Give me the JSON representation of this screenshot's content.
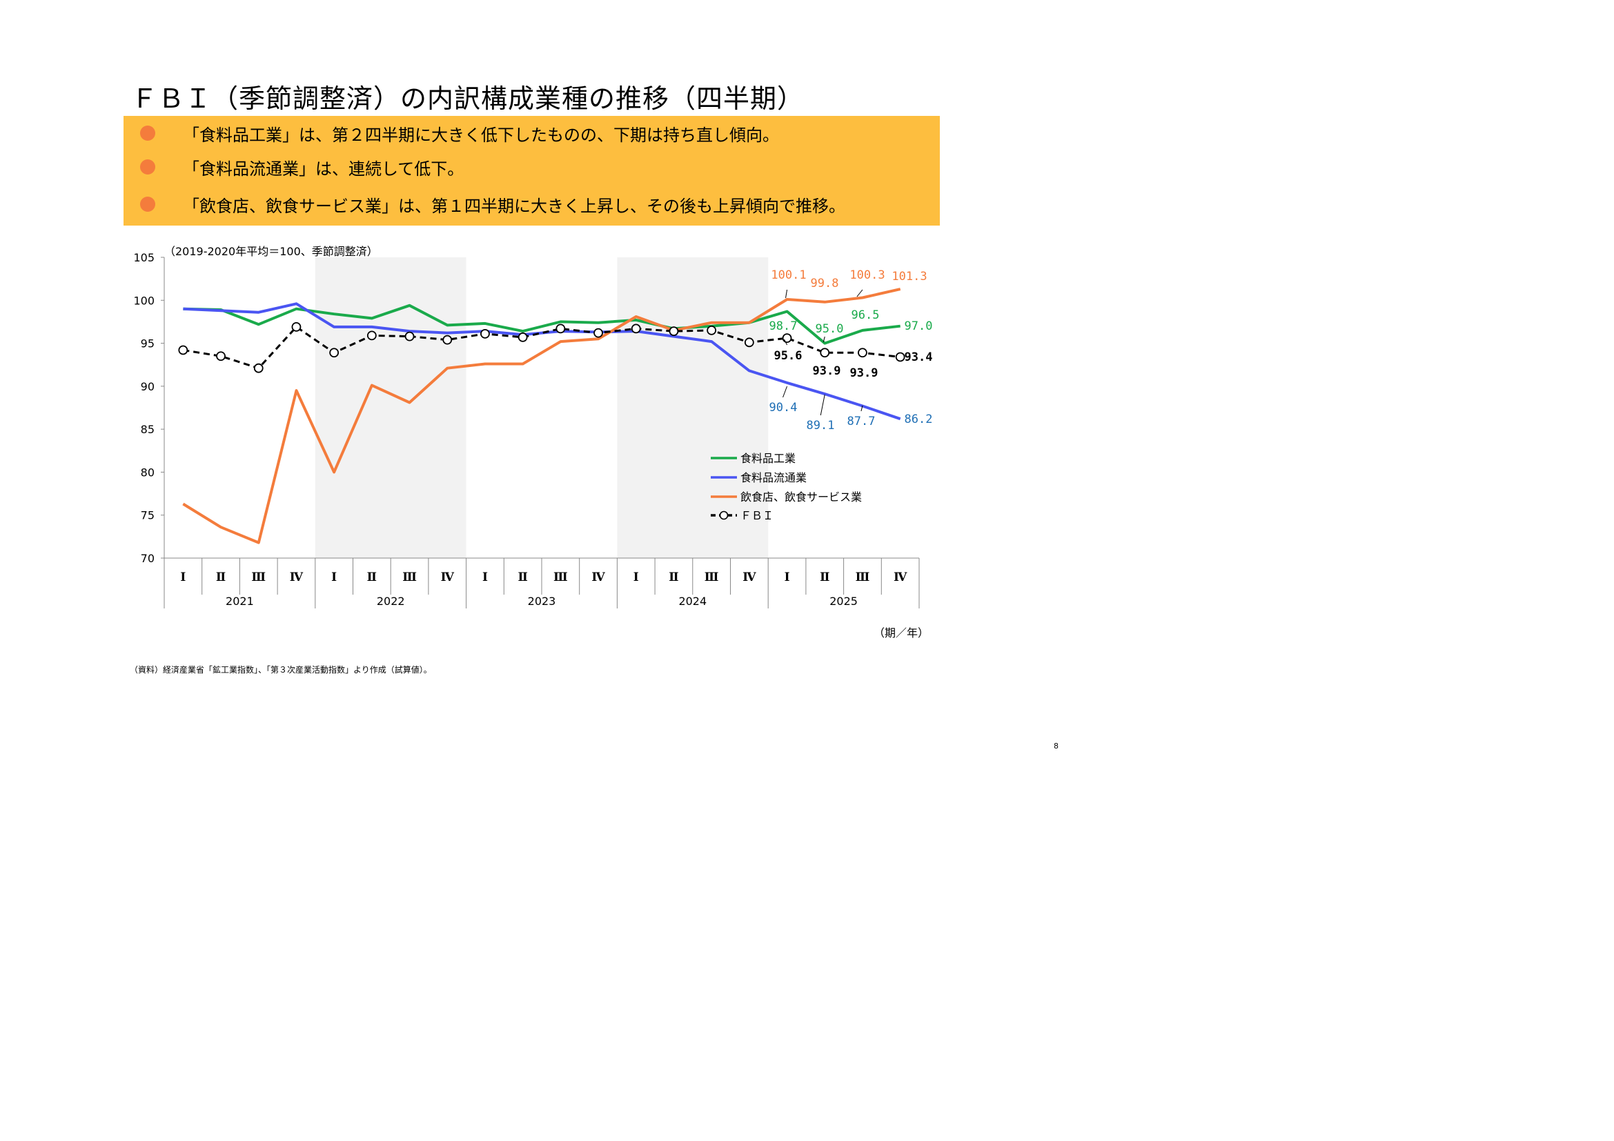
{
  "title": "ＦＢＩ（季節調整済）の内訳構成業種の推移（四半期）",
  "bullets": [
    "「食料品工業」は、第２四半期に大きく低下したものの、下期は持ち直し傾向。",
    "「食料品流通業」は、連続して低下。",
    "「飲食店、飲食サービス業」は、第１四半期に大きく上昇し、その後も上昇傾向で推移。"
  ],
  "colors": {
    "banner": "#FDBE3F",
    "bullet": "#F47C3C",
    "green": "#1AAA4B",
    "blue": "#4A55F2",
    "orange": "#F47C3C",
    "fbi": "#000000",
    "shade": "#F2F2F2"
  },
  "chart_data": {
    "type": "line",
    "unit_note": "（2019-2020年平均＝100、季節調整済）",
    "xlabel": "（期／年）",
    "ylim": [
      70,
      105
    ],
    "yticks": [
      70,
      75,
      80,
      85,
      90,
      95,
      100,
      105
    ],
    "quarters": [
      "Ⅰ",
      "Ⅱ",
      "Ⅲ",
      "Ⅳ"
    ],
    "years": [
      "2021",
      "2022",
      "2023",
      "2024",
      "2025"
    ],
    "shaded_years": [
      "2022",
      "2024"
    ],
    "series": [
      {
        "name": "食料品工業",
        "color": "#1AAA4B",
        "dashed": false,
        "values": [
          99.0,
          98.9,
          97.2,
          99.0,
          98.4,
          97.9,
          99.4,
          97.1,
          97.3,
          96.4,
          97.5,
          97.4,
          97.7,
          96.7,
          97.0,
          97.4,
          98.7,
          95.0,
          96.5,
          97.0
        ]
      },
      {
        "name": "食料品流通業",
        "color": "#4A55F2",
        "dashed": false,
        "values": [
          99.0,
          98.8,
          98.6,
          99.6,
          96.9,
          96.9,
          96.4,
          96.2,
          96.4,
          96.0,
          96.4,
          96.3,
          96.4,
          95.8,
          95.2,
          91.8,
          90.4,
          89.1,
          87.7,
          86.2
        ]
      },
      {
        "name": "飲食店、飲食サービス業",
        "color": "#F47C3C",
        "dashed": false,
        "values": [
          76.3,
          73.6,
          71.8,
          89.5,
          80.0,
          90.1,
          88.1,
          92.1,
          92.6,
          92.6,
          95.2,
          95.5,
          98.1,
          96.5,
          97.4,
          97.4,
          100.1,
          99.8,
          100.3,
          101.3
        ]
      },
      {
        "name": "ＦＢＩ",
        "color": "#000000",
        "dashed": true,
        "values": [
          94.2,
          93.5,
          92.1,
          96.9,
          93.9,
          95.9,
          95.8,
          95.4,
          96.1,
          95.7,
          96.7,
          96.2,
          96.7,
          96.4,
          96.5,
          95.1,
          95.6,
          93.9,
          93.9,
          93.4
        ]
      }
    ],
    "data_labels": {
      "green": [
        "98.7",
        "95.0",
        "96.5",
        "97.0"
      ],
      "blue": [
        "90.4",
        "89.1",
        "87.7",
        "86.2"
      ],
      "orange": [
        "100.1",
        "99.8",
        "100.3",
        "101.3"
      ],
      "fbi": [
        "95.6",
        "93.9",
        "93.9",
        "93.4"
      ]
    }
  },
  "source": "（資料）経済産業省「鉱工業指数」、「第３次産業活動指数」より作成（試算値）。",
  "page_number": "8"
}
